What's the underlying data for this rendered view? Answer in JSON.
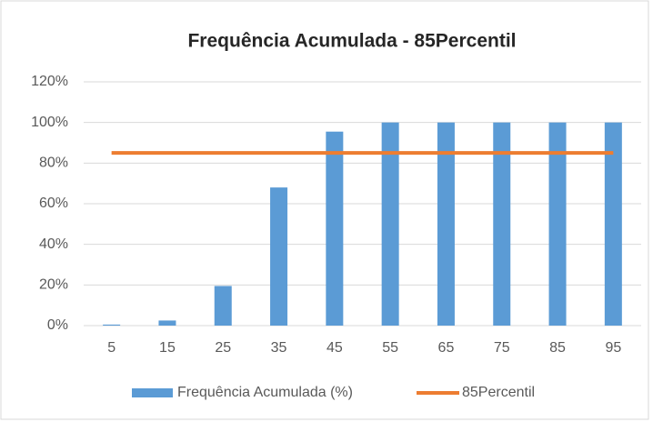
{
  "chart_data": {
    "type": "bar",
    "title": "Frequência Acumulada - 85Percentil",
    "categories": [
      "5",
      "15",
      "25",
      "35",
      "45",
      "55",
      "65",
      "75",
      "85",
      "95"
    ],
    "series": [
      {
        "name": "Frequência Acumulada (%)",
        "type": "bar",
        "color": "#5b9bd5",
        "values": [
          0.5,
          2.5,
          19.5,
          68,
          95.5,
          100,
          100,
          100,
          100,
          100
        ]
      },
      {
        "name": "85Percentil",
        "type": "line",
        "color": "#ed7d31",
        "values": [
          85,
          85,
          85,
          85,
          85,
          85,
          85,
          85,
          85,
          85
        ]
      }
    ],
    "ylim": [
      0,
      120
    ],
    "yticks": [
      {
        "value": 0,
        "label": "0%"
      },
      {
        "value": 20,
        "label": "20%"
      },
      {
        "value": 40,
        "label": "40%"
      },
      {
        "value": 60,
        "label": "60%"
      },
      {
        "value": 80,
        "label": "80%"
      },
      {
        "value": 100,
        "label": "100%"
      },
      {
        "value": 120,
        "label": "120%"
      }
    ],
    "grid": true,
    "legend": "bottom"
  }
}
